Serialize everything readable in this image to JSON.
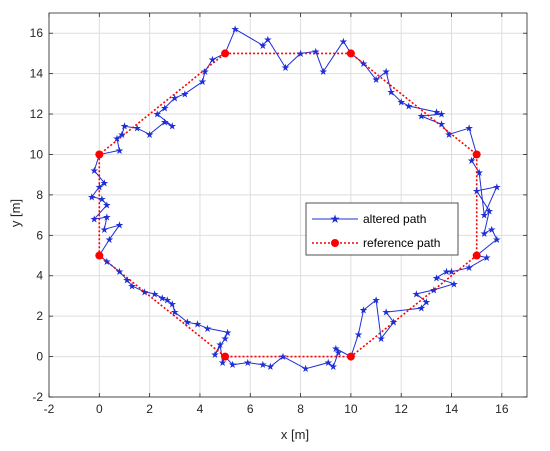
{
  "chart_data": {
    "type": "line",
    "xlabel": "x [m]",
    "ylabel": "y [m]",
    "xlim": [
      -2,
      17
    ],
    "ylim": [
      -2,
      17
    ],
    "x_ticks": [
      -2,
      0,
      2,
      4,
      6,
      8,
      10,
      12,
      14,
      16
    ],
    "y_ticks": [
      -2,
      0,
      2,
      4,
      6,
      8,
      10,
      12,
      14,
      16
    ],
    "grid": true,
    "legend_position": "center-right",
    "series": [
      {
        "name": "altered path",
        "color": "#1f2fd6",
        "marker": "star",
        "line_style": "solid",
        "points": [
          [
            5.0,
            15.0
          ],
          [
            5.4,
            16.2
          ],
          [
            6.5,
            15.4
          ],
          [
            6.7,
            15.7
          ],
          [
            7.4,
            14.3
          ],
          [
            8.0,
            15.0
          ],
          [
            8.6,
            15.1
          ],
          [
            8.9,
            14.1
          ],
          [
            9.7,
            15.6
          ],
          [
            10.0,
            15.0
          ],
          [
            10.5,
            14.5
          ],
          [
            11.0,
            13.7
          ],
          [
            11.4,
            14.1
          ],
          [
            11.6,
            13.1
          ],
          [
            12.0,
            12.6
          ],
          [
            12.3,
            12.4
          ],
          [
            13.4,
            12.1
          ],
          [
            13.6,
            12.0
          ],
          [
            12.8,
            11.9
          ],
          [
            13.6,
            11.5
          ],
          [
            13.9,
            11.0
          ],
          [
            14.7,
            11.3
          ],
          [
            15.0,
            10.0
          ],
          [
            14.8,
            9.7
          ],
          [
            15.1,
            9.1
          ],
          [
            15.3,
            7.0
          ],
          [
            15.8,
            8.4
          ],
          [
            15.0,
            8.2
          ],
          [
            15.5,
            7.2
          ],
          [
            15.3,
            6.1
          ],
          [
            15.6,
            6.3
          ],
          [
            15.8,
            5.8
          ],
          [
            15.0,
            5.0
          ],
          [
            15.4,
            4.9
          ],
          [
            14.7,
            4.4
          ],
          [
            14.0,
            4.2
          ],
          [
            13.8,
            4.2
          ],
          [
            13.4,
            3.9
          ],
          [
            14.1,
            3.6
          ],
          [
            13.3,
            3.3
          ],
          [
            12.6,
            3.1
          ],
          [
            13.0,
            2.7
          ],
          [
            12.8,
            2.4
          ],
          [
            11.4,
            2.2
          ],
          [
            11.7,
            1.7
          ],
          [
            11.2,
            0.9
          ],
          [
            11.0,
            2.8
          ],
          [
            10.5,
            2.3
          ],
          [
            10.3,
            1.1
          ],
          [
            10.0,
            0.0
          ],
          [
            9.4,
            0.4
          ],
          [
            9.5,
            0.2
          ],
          [
            9.3,
            -0.5
          ],
          [
            9.1,
            -0.3
          ],
          [
            8.2,
            -0.6
          ],
          [
            7.3,
            0.0
          ],
          [
            6.8,
            -0.5
          ],
          [
            6.5,
            -0.4
          ],
          [
            5.9,
            -0.3
          ],
          [
            5.3,
            -0.4
          ],
          [
            5.0,
            0.0
          ],
          [
            4.9,
            -0.3
          ],
          [
            4.8,
            0.6
          ],
          [
            4.6,
            0.1
          ],
          [
            5.0,
            0.9
          ],
          [
            5.1,
            1.2
          ],
          [
            4.3,
            1.4
          ],
          [
            3.9,
            1.6
          ],
          [
            3.5,
            1.7
          ],
          [
            3.0,
            2.2
          ],
          [
            2.9,
            2.6
          ],
          [
            2.7,
            2.8
          ],
          [
            2.5,
            2.9
          ],
          [
            2.2,
            3.1
          ],
          [
            1.8,
            3.2
          ],
          [
            1.3,
            3.5
          ],
          [
            1.1,
            3.8
          ],
          [
            0.8,
            4.2
          ],
          [
            0.3,
            4.7
          ],
          [
            0.0,
            5.0
          ],
          [
            0.4,
            5.8
          ],
          [
            0.8,
            6.5
          ],
          [
            0.2,
            6.3
          ],
          [
            0.3,
            6.9
          ],
          [
            -0.2,
            6.8
          ],
          [
            0.3,
            7.5
          ],
          [
            0.1,
            7.8
          ],
          [
            -0.3,
            7.9
          ],
          [
            0.0,
            8.4
          ],
          [
            0.2,
            8.6
          ],
          [
            -0.2,
            9.2
          ],
          [
            0.0,
            10.0
          ],
          [
            0.8,
            10.2
          ],
          [
            0.7,
            10.8
          ],
          [
            0.9,
            11.0
          ],
          [
            1.0,
            11.4
          ],
          [
            1.5,
            11.3
          ],
          [
            2.0,
            11.0
          ],
          [
            2.6,
            11.6
          ],
          [
            2.9,
            11.4
          ],
          [
            2.3,
            12.0
          ],
          [
            2.6,
            12.3
          ],
          [
            3.0,
            12.8
          ],
          [
            3.4,
            13.0
          ],
          [
            4.1,
            13.6
          ],
          [
            4.2,
            14.1
          ],
          [
            4.5,
            14.7
          ],
          [
            5.0,
            15.0
          ]
        ]
      },
      {
        "name": "reference path",
        "color": "#ff0000",
        "marker": "circle",
        "line_style": "dotted",
        "points": [
          [
            5,
            15
          ],
          [
            10,
            15
          ],
          [
            15,
            10
          ],
          [
            15,
            5
          ],
          [
            10,
            0
          ],
          [
            5,
            0
          ],
          [
            0,
            5
          ],
          [
            0,
            10
          ],
          [
            5,
            15
          ]
        ]
      }
    ]
  }
}
